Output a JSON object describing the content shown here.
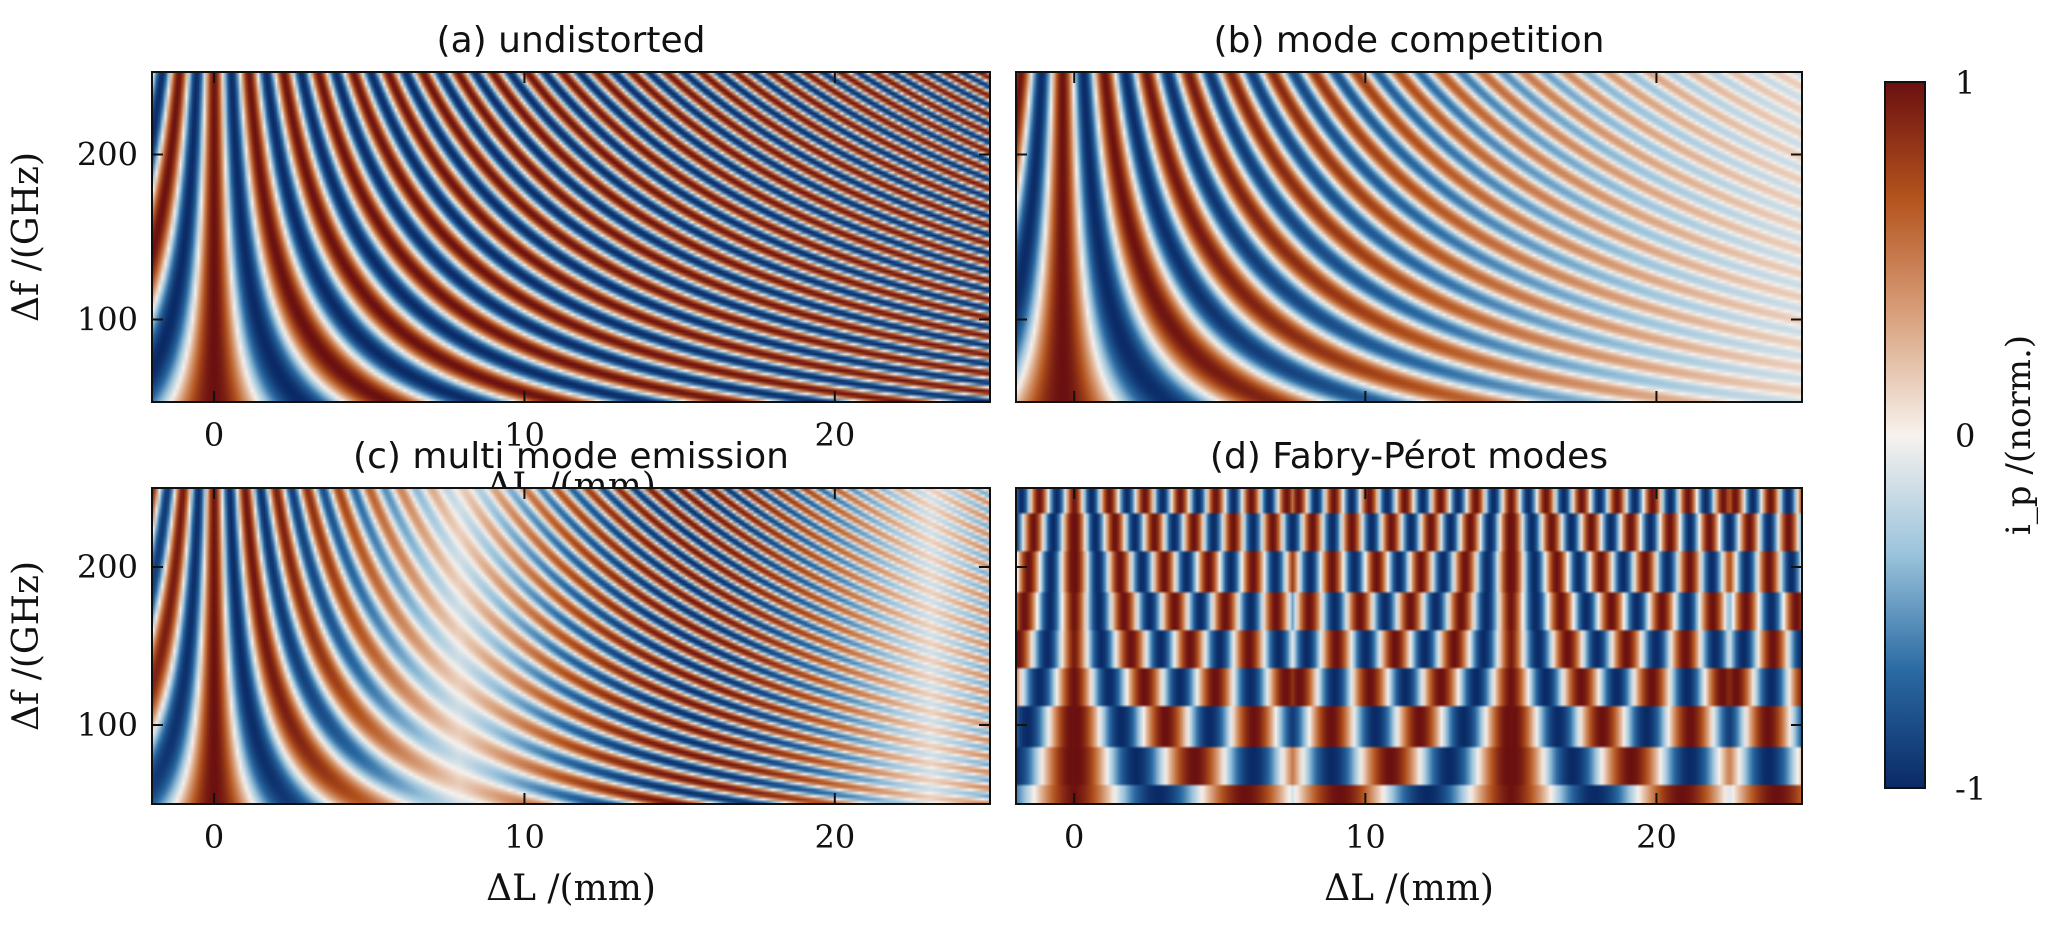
{
  "chart_data": [
    {
      "type": "heatmap",
      "title": "(a) undistorted",
      "model": "undistorted",
      "xlabel": "ΔL /(mm)",
      "ylabel": "Δf /(GHz)",
      "xlim": [
        -2,
        25
      ],
      "ylim": [
        50,
        250
      ],
      "xticks": [
        0,
        10,
        20
      ],
      "yticks": [
        100,
        200
      ],
      "xticklabels": [
        "0",
        "10",
        "20"
      ],
      "yticklabels": [
        "100",
        "200"
      ]
    },
    {
      "type": "heatmap",
      "title": "(b) mode competition",
      "model": "mode-competition",
      "xlabel": "",
      "ylabel": "",
      "xlim": [
        -2,
        25
      ],
      "ylim": [
        50,
        250
      ],
      "xticks": [
        0,
        10,
        20
      ],
      "yticks": [
        100,
        200
      ],
      "xticklabels": [],
      "yticklabels": []
    },
    {
      "type": "heatmap",
      "title": "(c) multi mode emission",
      "model": "multi-mode",
      "xlabel": "ΔL /(mm)",
      "ylabel": "Δf /(GHz)",
      "xlim": [
        -2,
        25
      ],
      "ylim": [
        50,
        250
      ],
      "xticks": [
        0,
        10,
        20
      ],
      "yticks": [
        100,
        200
      ],
      "xticklabels": [
        "0",
        "10",
        "20"
      ],
      "yticklabels": [
        "100",
        "200"
      ]
    },
    {
      "type": "heatmap",
      "title": "(d) Fabry-Pérot modes",
      "model": "fabry-perot",
      "xlabel": "ΔL /(mm)",
      "ylabel": "",
      "xlim": [
        -2,
        25
      ],
      "ylim": [
        50,
        250
      ],
      "xticks": [
        0,
        10,
        20
      ],
      "yticks": [
        100,
        200
      ],
      "xticklabels": [
        "0",
        "10",
        "20"
      ],
      "yticklabels": []
    }
  ],
  "colorbar": {
    "label": "i_p /(norm.)",
    "min_label": "-1",
    "mid_label": "0",
    "max_label": "1",
    "range": [
      -1,
      1
    ],
    "colors": [
      "#0a2a66",
      "#2a6aa3",
      "#9cc4dc",
      "#f7f2ee",
      "#d9a27e",
      "#b4541e",
      "#6b1010"
    ]
  }
}
